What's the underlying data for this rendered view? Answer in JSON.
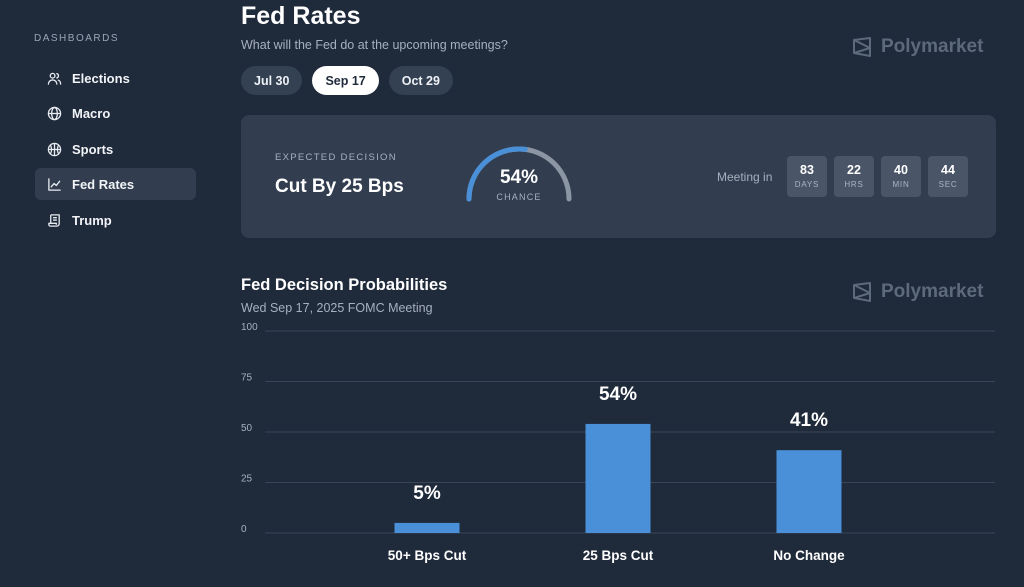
{
  "sidebar": {
    "heading": "DASHBOARDS",
    "items": [
      {
        "label": "Elections",
        "icon": "users-icon",
        "active": false
      },
      {
        "label": "Macro",
        "icon": "globe-icon",
        "active": false
      },
      {
        "label": "Sports",
        "icon": "basketball-icon",
        "active": false
      },
      {
        "label": "Fed Rates",
        "icon": "line-chart-icon",
        "active": true
      },
      {
        "label": "Trump",
        "icon": "scroll-icon",
        "active": false
      }
    ]
  },
  "header": {
    "title": "Fed Rates",
    "subtitle": "What will the Fed do at the upcoming meetings?",
    "brand": "Polymarket"
  },
  "tabs": [
    {
      "label": "Jul 30",
      "active": false
    },
    {
      "label": "Sep 17",
      "active": true
    },
    {
      "label": "Oct 29",
      "active": false
    }
  ],
  "decision": {
    "label": "EXPECTED DECISION",
    "value": "Cut By 25 Bps",
    "chance_text": "54%",
    "chance_fraction": 0.54,
    "chance_caption": "CHANCE",
    "meeting_label": "Meeting in",
    "countdown": [
      {
        "value": "83",
        "unit": "DAYS"
      },
      {
        "value": "22",
        "unit": "HRS"
      },
      {
        "value": "40",
        "unit": "MIN"
      },
      {
        "value": "44",
        "unit": "SEC"
      }
    ]
  },
  "chart": {
    "title": "Fed Decision Probabilities",
    "subtitle": "Wed Sep 17, 2025 FOMC Meeting",
    "brand": "Polymarket"
  },
  "colors": {
    "background": "#1f2a3b",
    "card": "#323e50",
    "accent": "#4a90d9",
    "gauge_track": "#8b95a3",
    "grid": "#3a4658"
  },
  "chart_data": {
    "type": "bar",
    "title": "Fed Decision Probabilities",
    "subtitle": "Wed Sep 17, 2025 FOMC Meeting",
    "categories": [
      "50+ Bps Cut",
      "25 Bps Cut",
      "No Change"
    ],
    "values": [
      5,
      54,
      41
    ],
    "data_labels": [
      "5%",
      "54%",
      "41%"
    ],
    "ylim": [
      0,
      100
    ],
    "yticks": [
      "0",
      "25",
      "50",
      "75",
      "100"
    ],
    "ytick_values": [
      0,
      25,
      50,
      75,
      100
    ],
    "grid": true
  }
}
